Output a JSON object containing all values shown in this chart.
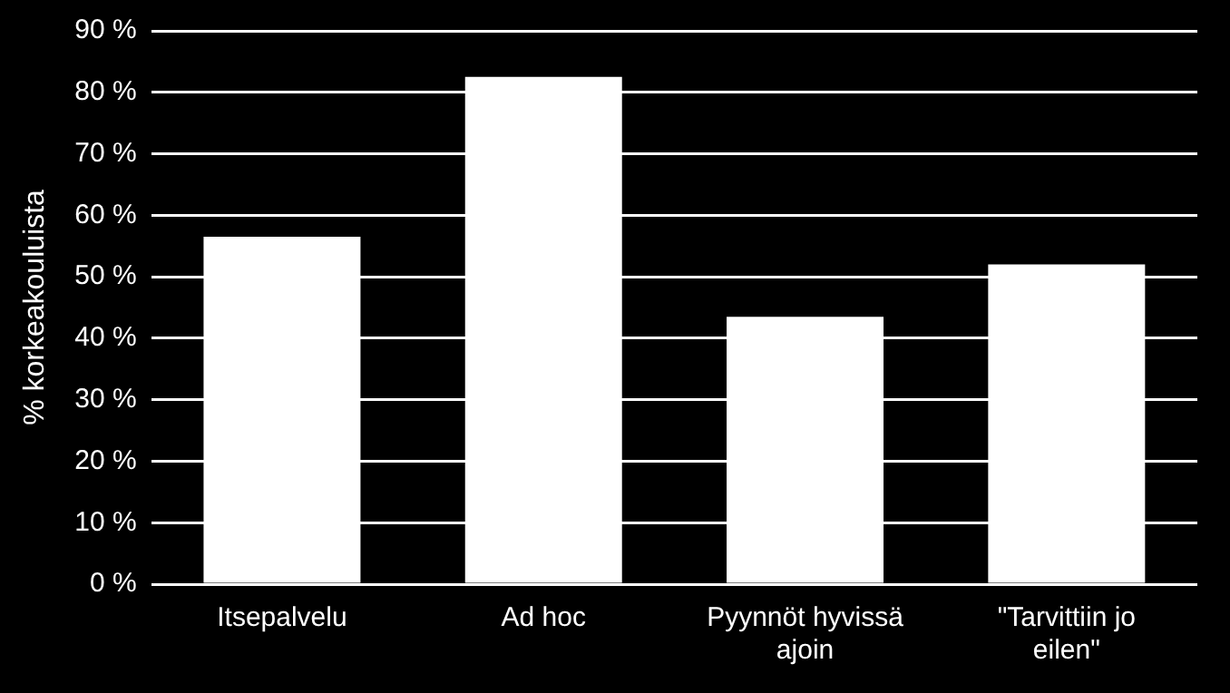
{
  "chart_data": {
    "type": "bar",
    "ylabel": "% korkeakouluista",
    "categories": [
      "Itsepalvelu",
      "Ad hoc",
      "Pyynnöt hyvissä ajoin",
      "\"Tarvittiin jo eilen\""
    ],
    "values": [
      56.5,
      82.5,
      43.5,
      52
    ],
    "color": "#ffffff",
    "ylim": [
      0,
      90
    ],
    "yticks": [
      {
        "value": 0,
        "label": "0 %"
      },
      {
        "value": 10,
        "label": "10 %"
      },
      {
        "value": 20,
        "label": "20 %"
      },
      {
        "value": 30,
        "label": "30 %"
      },
      {
        "value": 40,
        "label": "40 %"
      },
      {
        "value": 50,
        "label": "50 %"
      },
      {
        "value": 60,
        "label": "60 %"
      },
      {
        "value": 70,
        "label": "70 %"
      },
      {
        "value": 80,
        "label": "80 %"
      },
      {
        "value": 90,
        "label": "90 %"
      }
    ],
    "grid": "y",
    "legend": false
  }
}
